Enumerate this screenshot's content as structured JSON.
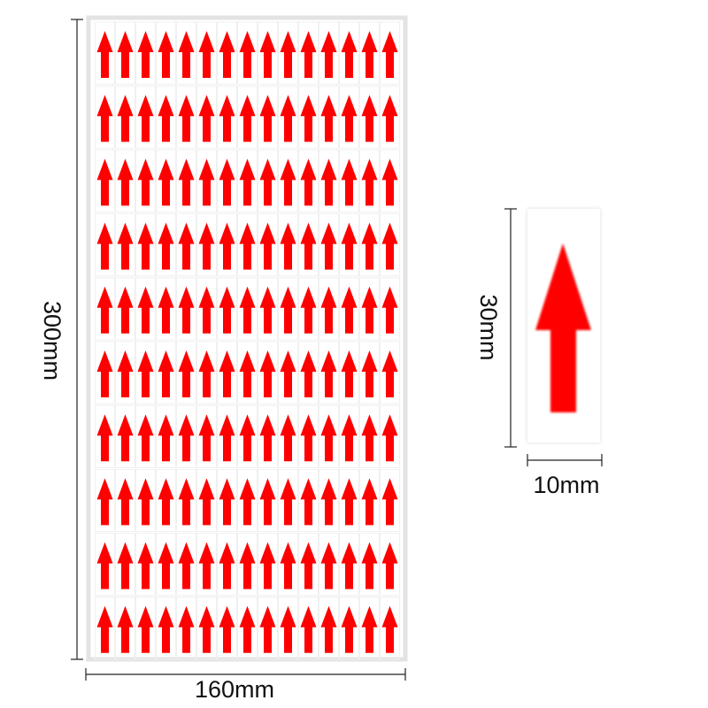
{
  "sheet_dimensions": {
    "height": "300mm",
    "width": "160mm"
  },
  "sticker_dimensions": {
    "height": "30mm",
    "width": "10mm"
  }
}
